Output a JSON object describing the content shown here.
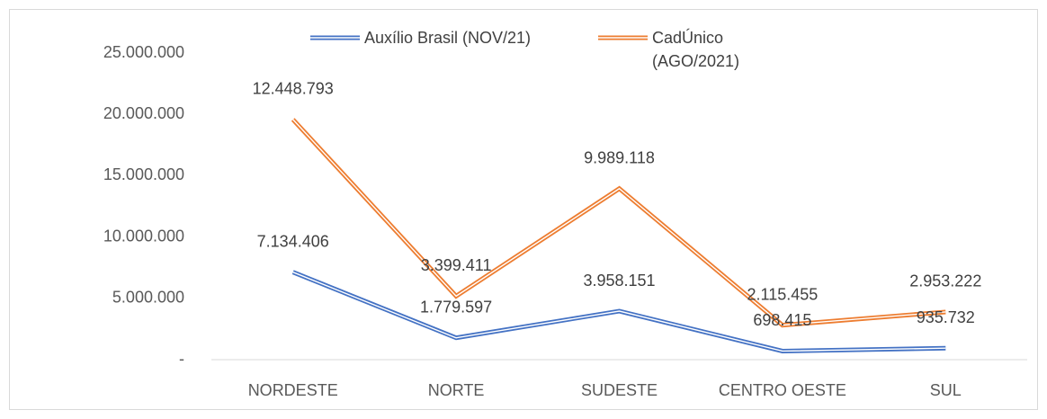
{
  "chart_data": {
    "type": "line",
    "stacked": true,
    "categories": [
      "NORDESTE",
      "NORTE",
      "SUDESTE",
      "CENTRO OESTE",
      "SUL"
    ],
    "series": [
      {
        "name": "Auxílio Brasil (NOV/21)",
        "color": "#4472c4",
        "values": [
          7134406,
          1779597,
          3958151,
          698415,
          935732
        ],
        "value_labels": [
          "7.134.406",
          "1.779.597",
          "3.958.151",
          "698.415",
          "935.732"
        ]
      },
      {
        "name": "CadÚnico (AGO/2021)",
        "color": "#ed7d31",
        "values": [
          12448793,
          3399411,
          9989118,
          2115455,
          2953222
        ],
        "value_labels": [
          "12.448.793",
          "3.399.411",
          "9.989.118",
          "2.115.455",
          "2.953.222"
        ]
      }
    ],
    "ylim": [
      0,
      25000000
    ],
    "yticks": [
      {
        "value": 0,
        "label": "-"
      },
      {
        "value": 5000000,
        "label": "5.000.000"
      },
      {
        "value": 10000000,
        "label": "10.000.000"
      },
      {
        "value": 15000000,
        "label": "15.000.000"
      },
      {
        "value": 20000000,
        "label": "20.000.000"
      },
      {
        "value": 25000000,
        "label": "25.000.000"
      }
    ],
    "legend": "top",
    "grid": false
  }
}
